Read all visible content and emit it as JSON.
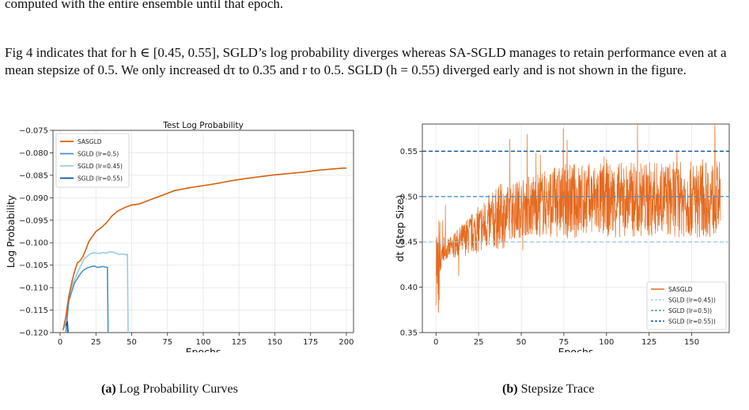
{
  "paragraphs": [
    "computed with the entire ensemble until that epoch.",
    "Fig 4 indicates that for h ∈ [0.45, 0.55], SGLD’s log probability diverges whereas SA-SGLD manages to retain performance even at a mean stepsize of 0.5. We only increased dτ to 0.35 and r to 0.5. SGLD (h = 0.55) diverged early and is not shown in the figure."
  ],
  "captions": {
    "a": {
      "label": "(a)",
      "text": "Log Probability Curves"
    },
    "b": {
      "label": "(b)",
      "text": "Stepsize Trace"
    }
  },
  "chart_data": [
    {
      "type": "line",
      "title": "Test Log Probability",
      "xlabel": "Epochs",
      "ylabel": "Log Probability",
      "xlim": [
        -5,
        205
      ],
      "ylim": [
        -0.12,
        -0.075
      ],
      "xticks": [
        0,
        25,
        50,
        75,
        100,
        125,
        150,
        175,
        200
      ],
      "yticks": [
        -0.12,
        -0.115,
        -0.11,
        -0.105,
        -0.1,
        -0.095,
        -0.09,
        -0.085,
        -0.08,
        -0.075
      ],
      "grid": true,
      "legend": "top-left",
      "series": [
        {
          "name": "SASGLD",
          "color": "#d95f0e",
          "x": [
            2,
            4,
            6,
            8,
            10,
            12,
            14,
            16,
            18,
            20,
            22,
            25,
            28,
            30,
            33,
            36,
            40,
            45,
            50,
            55,
            60,
            70,
            80,
            90,
            100,
            110,
            120,
            130,
            140,
            150,
            160,
            170,
            180,
            190,
            198,
            200
          ],
          "y": [
            -0.1195,
            -0.1165,
            -0.112,
            -0.109,
            -0.1065,
            -0.1045,
            -0.104,
            -0.103,
            -0.1015,
            -0.0998,
            -0.0988,
            -0.0975,
            -0.0968,
            -0.0963,
            -0.0953,
            -0.0941,
            -0.093,
            -0.0922,
            -0.0916,
            -0.0914,
            -0.0908,
            -0.0896,
            -0.0884,
            -0.0878,
            -0.0873,
            -0.0868,
            -0.0862,
            -0.0857,
            -0.0853,
            -0.0849,
            -0.0846,
            -0.0843,
            -0.0839,
            -0.0836,
            -0.0834,
            -0.0834
          ]
        },
        {
          "name": "SGLD (lr=0.5)",
          "color": "#4a90c8",
          "x": [
            4,
            6,
            8,
            10,
            12,
            14,
            16,
            18,
            20,
            22,
            24,
            26,
            28,
            30,
            33,
            33.5
          ],
          "y": [
            -0.12,
            -0.113,
            -0.111,
            -0.109,
            -0.108,
            -0.107,
            -0.1062,
            -0.1058,
            -0.1055,
            -0.1053,
            -0.1052,
            -0.1055,
            -0.1054,
            -0.1053,
            -0.1055,
            -0.12
          ]
        },
        {
          "name": "SGLD (lr=0.45)",
          "color": "#9ecae1",
          "x": [
            3,
            5,
            7,
            9,
            11,
            13,
            15,
            17,
            19,
            21,
            24,
            27,
            30,
            32,
            35,
            38,
            41,
            44,
            46,
            47,
            47.5
          ],
          "y": [
            -0.119,
            -0.114,
            -0.111,
            -0.109,
            -0.1075,
            -0.106,
            -0.1048,
            -0.1035,
            -0.103,
            -0.1025,
            -0.1022,
            -0.1024,
            -0.1022,
            -0.1023,
            -0.102,
            -0.1022,
            -0.1026,
            -0.1025,
            -0.1027,
            -0.1026,
            -0.12
          ]
        },
        {
          "name": "SGLD (lr=0.55)",
          "color": "#08519c",
          "x": [
            4,
            5,
            5.5
          ],
          "y": [
            -0.1185,
            -0.1175,
            -0.12
          ]
        }
      ]
    },
    {
      "type": "line",
      "xlabel": "Epochs",
      "ylabel": "dt (Step Size)",
      "xlim": [
        -8,
        172
      ],
      "ylim": [
        0.35,
        0.58
      ],
      "xticks": [
        0,
        25,
        50,
        75,
        100,
        125,
        150
      ],
      "yticks": [
        0.35,
        0.4,
        0.45,
        0.5,
        0.55
      ],
      "grid": true,
      "legend": "bottom-right",
      "series": [
        {
          "name": "SASGLD",
          "color": "#e66a1e",
          "trend": {
            "x": [
              0,
              2,
              5,
              10,
              20,
              30,
              40,
              50,
              60,
              75,
              100,
              125,
              150,
              167
            ],
            "y": [
              0.43,
              0.43,
              0.44,
              0.445,
              0.458,
              0.47,
              0.48,
              0.488,
              0.492,
              0.495,
              0.496,
              0.497,
              0.497,
              0.497
            ]
          }
        },
        {
          "name": "SGLD (lr=0.45))",
          "color": "#9ecae1",
          "style": "dashed",
          "y": 0.45
        },
        {
          "name": "SGLD (lr=0.5))",
          "color": "#4a90c8",
          "style": "dashed",
          "y": 0.5
        },
        {
          "name": "SGLD (lr=0.55))",
          "color": "#08519c",
          "style": "dashed",
          "y": 0.55
        }
      ]
    }
  ]
}
